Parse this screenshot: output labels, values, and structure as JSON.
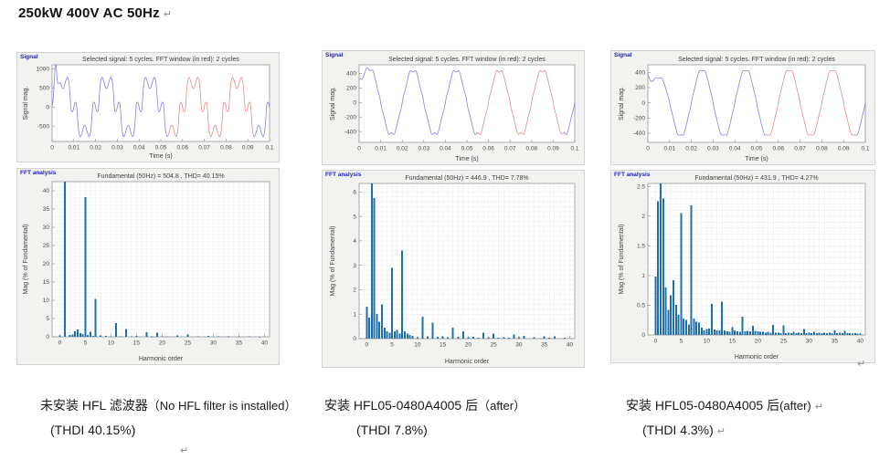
{
  "page": {
    "title": "250kW 400V AC 50Hz",
    "return_mark": "↵"
  },
  "colors": {
    "bar": "#1f6fa8",
    "line_blue": "#8083dd",
    "line_red": "#df8e8e",
    "panel_label": "#2222bb",
    "grid": "#ebebeb",
    "box": "#8a8a8a",
    "text": "#404040",
    "tick_text": "#4d4d4d"
  },
  "columns": [
    {
      "caption_zh": "未安装 HFL 滤波器",
      "caption_en": "（No HFL filter is installed）",
      "caption_thdi": "(THDI 40.15%)"
    },
    {
      "caption_zh": "安装 HFL05-0480A4005 后",
      "caption_en": "（after）",
      "caption_thdi": "(THDI 7.8%)"
    },
    {
      "caption_zh": "安装 HFL05-0480A4005 后",
      "caption_en": "(after)",
      "caption_thdi": "(THDI 4.3%)"
    }
  ],
  "chart_data": [
    {
      "type": "line",
      "panel_label": "Signal",
      "title": "Selected signal: 5 cycles. FFT window (in red): 2 cycles",
      "xlabel": "Time (s)",
      "ylabel": "Signal mag.",
      "xlim": [
        0,
        0.1
      ],
      "ylim": [
        -900,
        1100
      ],
      "xticks": [
        "0",
        "0.01",
        "0.02",
        "0.03",
        "0.04",
        "0.05",
        "0.06",
        "0.07",
        "0.08",
        "0.09",
        "0.1"
      ],
      "yticks": [
        "-500",
        "0",
        "500",
        "1000"
      ],
      "fundamental_hz": 50,
      "cycles": 5,
      "fft_window_s": [
        0.053,
        0.093
      ],
      "display_amplitude": 680,
      "harmonics": [
        [
          1,
          1,
          0
        ],
        [
          5,
          0.383,
          3.1416
        ],
        [
          7,
          0.104,
          3.1416
        ],
        [
          11,
          0.038,
          0
        ],
        [
          13,
          0.021,
          0
        ],
        [
          17,
          0.012,
          3.1416
        ],
        [
          19,
          0.012,
          3.1416
        ]
      ],
      "spike": {
        "a": 1050,
        "t0": 0.0015,
        "w": 0.0008
      },
      "ramp": {
        "from": 0,
        "until": 0.004
      }
    },
    {
      "type": "bar",
      "panel_label": "FFT analysis",
      "title": "Fundamental (50Hz) = 504.8 , THD= 40.15%",
      "xlabel": "Harmonic order",
      "ylabel": "Mag (% of Fundamental)",
      "xlim": [
        -1.5,
        41
      ],
      "ylim": [
        0,
        42.5
      ],
      "xticks": [
        "0",
        "5",
        "10",
        "15",
        "20",
        "25",
        "30",
        "35",
        "40"
      ],
      "yticks": [
        "0",
        "5",
        "10",
        "15",
        "20",
        "25",
        "30",
        "35",
        "40"
      ],
      "grid_y_step": 1,
      "bars": [
        [
          0,
          0.4
        ],
        [
          1,
          42.5
        ],
        [
          2,
          0.45
        ],
        [
          2.5,
          0.6
        ],
        [
          3,
          1.5
        ],
        [
          3.5,
          2.0
        ],
        [
          4,
          1.0
        ],
        [
          4.5,
          0.7
        ],
        [
          5,
          38.3
        ],
        [
          5.5,
          0.5
        ],
        [
          6,
          1.4
        ],
        [
          6.5,
          0.3
        ],
        [
          7,
          10.4
        ],
        [
          8,
          0.35
        ],
        [
          9,
          0.3
        ],
        [
          10,
          0.1
        ],
        [
          11,
          3.8
        ],
        [
          12,
          0.1
        ],
        [
          13,
          2.1
        ],
        [
          14,
          0.1
        ],
        [
          15,
          0.2
        ],
        [
          17,
          1.2
        ],
        [
          18,
          0.08
        ],
        [
          19,
          1.15
        ],
        [
          20,
          0.1
        ],
        [
          21,
          0.12
        ],
        [
          23,
          0.4
        ],
        [
          25,
          0.6
        ],
        [
          27,
          0.1
        ],
        [
          29,
          0.25
        ],
        [
          31,
          0.18
        ],
        [
          33,
          0.08
        ],
        [
          35,
          0.12
        ],
        [
          37,
          0.18
        ],
        [
          39,
          0.06
        ]
      ]
    },
    {
      "type": "line",
      "panel_label": "Signal",
      "title": "Selected signal: 5 cycles. FFT window (in red): 2 cycles",
      "xlabel": "Time (s)",
      "ylabel": "Signal mag.",
      "xlim": [
        0,
        0.1
      ],
      "ylim": [
        -550,
        520
      ],
      "xticks": [
        "0",
        "0.01",
        "0.02",
        "0.03",
        "0.04",
        "0.05",
        "0.06",
        "0.07",
        "0.08",
        "0.09",
        "0.1"
      ],
      "yticks": [
        "-400",
        "-200",
        "0",
        "200",
        "400"
      ],
      "fundamental_hz": 50,
      "cycles": 5,
      "fft_window_s": [
        0.055,
        0.095
      ],
      "display_amplitude": 450,
      "harmonics": [
        [
          1,
          1,
          0
        ],
        [
          5,
          0.029,
          3.1416
        ],
        [
          7,
          0.036,
          0
        ],
        [
          11,
          0.009,
          0
        ],
        [
          13,
          0.0065,
          0
        ]
      ],
      "decay": {
        "a": 320,
        "tau": 0.0018
      }
    },
    {
      "type": "bar",
      "panel_label": "FFT analysis",
      "title": "Fundamental (50Hz) = 446.9 , THD= 7.78%",
      "xlabel": "Harmonic order",
      "ylabel": "Mag (% of Fundamental)",
      "xlim": [
        -1.5,
        41
      ],
      "ylim": [
        0,
        6.35
      ],
      "xticks": [
        "0",
        "5",
        "10",
        "15",
        "20",
        "25",
        "30",
        "35",
        "40"
      ],
      "yticks": [
        "0",
        "1",
        "2",
        "3",
        "4",
        "5",
        "6"
      ],
      "grid_y_step": 0.2,
      "bars": [
        [
          0,
          1.3
        ],
        [
          0.5,
          0.85
        ],
        [
          1,
          6.35
        ],
        [
          1.5,
          5.75
        ],
        [
          2,
          1.0
        ],
        [
          2.5,
          0.7
        ],
        [
          3,
          1.4
        ],
        [
          3.5,
          0.45
        ],
        [
          4,
          0.3
        ],
        [
          4.5,
          0.25
        ],
        [
          5,
          2.9
        ],
        [
          5.5,
          0.3
        ],
        [
          6,
          0.35
        ],
        [
          6.5,
          0.2
        ],
        [
          7,
          3.6
        ],
        [
          7.5,
          0.3
        ],
        [
          8,
          0.2
        ],
        [
          8.5,
          0.15
        ],
        [
          9,
          0.12
        ],
        [
          10,
          0.06
        ],
        [
          11,
          0.9
        ],
        [
          12,
          0.1
        ],
        [
          13,
          0.65
        ],
        [
          14,
          0.08
        ],
        [
          15,
          0.1
        ],
        [
          16,
          0.05
        ],
        [
          17,
          0.45
        ],
        [
          18,
          0.08
        ],
        [
          19,
          0.3
        ],
        [
          20,
          0.06
        ],
        [
          21,
          0.08
        ],
        [
          22,
          0.04
        ],
        [
          23,
          0.25
        ],
        [
          24,
          0.05
        ],
        [
          25,
          0.2
        ],
        [
          26,
          0.04
        ],
        [
          27,
          0.06
        ],
        [
          28,
          0.04
        ],
        [
          29,
          0.16
        ],
        [
          30,
          0.05
        ],
        [
          31,
          0.12
        ],
        [
          33,
          0.06
        ],
        [
          35,
          0.1
        ],
        [
          36,
          0.04
        ],
        [
          37,
          0.1
        ],
        [
          39,
          0.03
        ]
      ]
    },
    {
      "type": "line",
      "panel_label": "Signal",
      "title": "Selected signal: 5 cycles. FFT window (in red): 2 cycles",
      "xlabel": "Time (s)",
      "ylabel": "Signal mag.",
      "xlim": [
        0,
        0.1
      ],
      "ylim": [
        -520,
        500
      ],
      "xticks": [
        "0",
        "0.01",
        "0.02",
        "0.03",
        "0.04",
        "0.05",
        "0.06",
        "0.07",
        "0.08",
        "0.09",
        "0.1"
      ],
      "yticks": [
        "-400",
        "-200",
        "0",
        "200",
        "400"
      ],
      "fundamental_hz": 50,
      "cycles": 5,
      "fft_window_s": [
        0.055,
        0.095
      ],
      "display_amplitude": 440,
      "harmonics": [
        [
          1,
          1,
          0
        ],
        [
          5,
          0.0205,
          3.1416
        ],
        [
          7,
          0.0218,
          0
        ],
        [
          11,
          0.005,
          0
        ],
        [
          13,
          0.006,
          0
        ]
      ],
      "decay": {
        "a": 390,
        "tau": 0.0018
      },
      "ramp": {
        "from": 0.55,
        "until": 0.014
      }
    },
    {
      "type": "bar",
      "panel_label": "FFT analysis",
      "title": "Fundamental (50Hz) = 431.9 , THD= 4.27%",
      "xlabel": "Harmonic order",
      "ylabel": "Mag (% of Fundamental)",
      "xlim": [
        -1.5,
        41
      ],
      "ylim": [
        0,
        2.55
      ],
      "xticks": [
        "0",
        "5",
        "10",
        "15",
        "20",
        "25",
        "30",
        "35",
        "40"
      ],
      "yticks": [
        "0",
        "0.5",
        "1",
        "1.5",
        "2",
        "2.5"
      ],
      "grid_y_step": 0.1,
      "bars": [
        [
          0,
          0.98
        ],
        [
          0.5,
          2.25
        ],
        [
          1,
          2.55
        ],
        [
          1.5,
          2.3
        ],
        [
          2,
          0.8
        ],
        [
          2.5,
          0.42
        ],
        [
          3,
          0.67
        ],
        [
          3.5,
          0.92
        ],
        [
          4,
          0.51
        ],
        [
          4.5,
          0.34
        ],
        [
          5,
          2.05
        ],
        [
          5.5,
          0.28
        ],
        [
          6,
          0.25
        ],
        [
          6.5,
          0.18
        ],
        [
          7,
          2.18
        ],
        [
          7.5,
          0.28
        ],
        [
          8,
          0.22
        ],
        [
          8.5,
          0.21
        ],
        [
          9,
          0.12
        ],
        [
          9.5,
          0.08
        ],
        [
          10,
          0.1
        ],
        [
          10.5,
          0.11
        ],
        [
          11,
          0.52
        ],
        [
          11.5,
          0.09
        ],
        [
          12,
          0.08
        ],
        [
          12.5,
          0.08
        ],
        [
          13,
          0.56
        ],
        [
          13.5,
          0.08
        ],
        [
          14,
          0.06
        ],
        [
          14.5,
          0.05
        ],
        [
          15,
          0.13
        ],
        [
          15.5,
          0.08
        ],
        [
          16,
          0.06
        ],
        [
          16.5,
          0.05
        ],
        [
          17,
          0.31
        ],
        [
          17.5,
          0.06
        ],
        [
          18,
          0.07
        ],
        [
          18.5,
          0.06
        ],
        [
          19,
          0.15
        ],
        [
          19.5,
          0.07
        ],
        [
          20,
          0.06
        ],
        [
          20.5,
          0.05
        ],
        [
          21,
          0.05
        ],
        [
          21.5,
          0.04
        ],
        [
          22,
          0.05
        ],
        [
          22.5,
          0.04
        ],
        [
          23,
          0.17
        ],
        [
          23.5,
          0.04
        ],
        [
          24,
          0.04
        ],
        [
          24.5,
          0.03
        ],
        [
          25,
          0.16
        ],
        [
          25.5,
          0.03
        ],
        [
          26,
          0.04
        ],
        [
          26.5,
          0.03
        ],
        [
          27,
          0.05
        ],
        [
          27.5,
          0.03
        ],
        [
          28,
          0.04
        ],
        [
          28.5,
          0.03
        ],
        [
          29,
          0.1
        ],
        [
          29.5,
          0.03
        ],
        [
          30,
          0.04
        ],
        [
          30.5,
          0.03
        ],
        [
          31,
          0.05
        ],
        [
          31.5,
          0.03
        ],
        [
          32,
          0.04
        ],
        [
          32.5,
          0.03
        ],
        [
          33,
          0.04
        ],
        [
          33.5,
          0.03
        ],
        [
          34,
          0.04
        ],
        [
          34.5,
          0.03
        ],
        [
          35,
          0.08
        ],
        [
          35.5,
          0.03
        ],
        [
          36,
          0.04
        ],
        [
          36.5,
          0.03
        ],
        [
          37,
          0.07
        ],
        [
          37.5,
          0.03
        ],
        [
          38,
          0.03
        ],
        [
          38.5,
          0.02
        ],
        [
          39,
          0.03
        ],
        [
          39.5,
          0.02
        ],
        [
          40,
          0.02
        ]
      ]
    }
  ]
}
